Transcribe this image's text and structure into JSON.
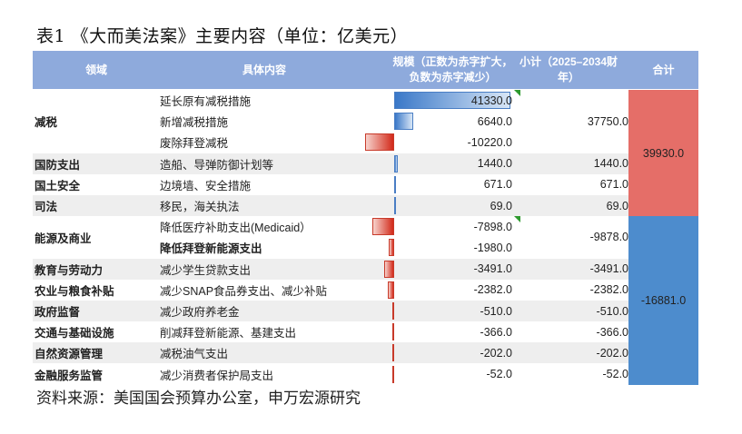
{
  "title": "表1 《大而美法案》主要内容（单位：亿美元）",
  "source": "资料来源：美国国会预算办公室，申万宏源研究",
  "colors": {
    "header_bg": "#8eaadc",
    "positive_bar": "#3a78c8",
    "negative_bar": "#d22a1a",
    "total_positive": "#e56e68",
    "total_negative": "#4d8ccd",
    "row_alt": "#eeeeee"
  },
  "header": {
    "domain": "领域",
    "content": "具体内容",
    "scale": "规模（正数为赤字扩大，\n负数为赤字减少）",
    "subtotal": "小计（2025–2034财\n年）",
    "total": "合计"
  },
  "rows": [
    {
      "domain": "减税",
      "content": "延长原有减税措施",
      "value": "41330.0",
      "num": 41330.0,
      "bold": false,
      "flag": true
    },
    {
      "domain": "",
      "content": "新增减税措施",
      "value": "6640.0",
      "num": 6640.0,
      "bold": false,
      "flag": false
    },
    {
      "domain": "",
      "content": "废除拜登减税",
      "value": "-10220.0",
      "num": -10220.0,
      "bold": false,
      "flag": false
    },
    {
      "domain": "国防支出",
      "content": "造船、导弹防御计划等",
      "value": "1440.0",
      "num": 1440.0,
      "bold": false,
      "flag": false
    },
    {
      "domain": "国土安全",
      "content": "边境墙、安全措施",
      "value": "671.0",
      "num": 671.0,
      "bold": false,
      "flag": false
    },
    {
      "domain": "司法",
      "content": "移民，海关执法",
      "value": "69.0",
      "num": 69.0,
      "bold": false,
      "flag": false
    },
    {
      "domain": "能源及商业",
      "content": "降低医疗补助支出(Medicaid）",
      "value": "-7898.0",
      "num": -7898.0,
      "bold": false,
      "flag": true
    },
    {
      "domain": "",
      "content": "降低拜登新能源支出",
      "value": "-1980.0",
      "num": -1980.0,
      "bold": true,
      "flag": false
    },
    {
      "domain": "教育与劳动力",
      "content": "减少学生贷款支出",
      "value": "-3491.0",
      "num": -3491.0,
      "bold": false,
      "flag": false
    },
    {
      "domain": "农业与粮食补贴",
      "content": "减少SNAP食品券支出、减少补贴",
      "value": "-2382.0",
      "num": -2382.0,
      "bold": false,
      "flag": false
    },
    {
      "domain": "政府监督",
      "content": "减少政府养老金",
      "value": "-510.0",
      "num": -510.0,
      "bold": false,
      "flag": false
    },
    {
      "domain": "交通与基础设施",
      "content": "削减拜登新能源、基建支出",
      "value": "-366.0",
      "num": -366.0,
      "bold": false,
      "flag": false
    },
    {
      "domain": "自然资源管理",
      "content": "减税油气支出",
      "value": "-202.0",
      "num": -202.0,
      "bold": false,
      "flag": false
    },
    {
      "domain": "金融服务监管",
      "content": "减少消费者保护局支出",
      "value": "-52.0",
      "num": -52.0,
      "bold": false,
      "flag": false
    }
  ],
  "subtotals": [
    {
      "value": "37750.0",
      "start": 0,
      "span": 3
    },
    {
      "value": "1440.0",
      "start": 3,
      "span": 1
    },
    {
      "value": "671.0",
      "start": 4,
      "span": 1
    },
    {
      "value": "69.0",
      "start": 5,
      "span": 1
    },
    {
      "value": "-9878.0",
      "start": 6,
      "span": 2
    },
    {
      "value": "-3491.0",
      "start": 8,
      "span": 1
    },
    {
      "value": "-2382.0",
      "start": 9,
      "span": 1
    },
    {
      "value": "-510.0",
      "start": 10,
      "span": 1
    },
    {
      "value": "-366.0",
      "start": 11,
      "span": 1
    },
    {
      "value": "-202.0",
      "start": 12,
      "span": 1
    },
    {
      "value": "-52.0",
      "start": 13,
      "span": 1
    }
  ],
  "totals": [
    {
      "value": "39930.0",
      "start": 0,
      "span": 6,
      "color": "#e56e68"
    },
    {
      "value": "-16881.0",
      "start": 6,
      "span": 8,
      "color": "#4d8ccd"
    }
  ],
  "domain_groups": [
    {
      "label": "减税",
      "start": 0,
      "span": 3
    },
    {
      "label": "国防支出",
      "start": 3,
      "span": 1
    },
    {
      "label": "国土安全",
      "start": 4,
      "span": 1
    },
    {
      "label": "司法",
      "start": 5,
      "span": 1
    },
    {
      "label": "能源及商业",
      "start": 6,
      "span": 2
    },
    {
      "label": "教育与劳动力",
      "start": 8,
      "span": 1
    },
    {
      "label": "农业与粮食补贴",
      "start": 9,
      "span": 1
    },
    {
      "label": "政府监督",
      "start": 10,
      "span": 1
    },
    {
      "label": "交通与基础设施",
      "start": 11,
      "span": 1
    },
    {
      "label": "自然资源管理",
      "start": 12,
      "span": 1
    },
    {
      "label": "金融服务监管",
      "start": 13,
      "span": 1
    }
  ]
}
